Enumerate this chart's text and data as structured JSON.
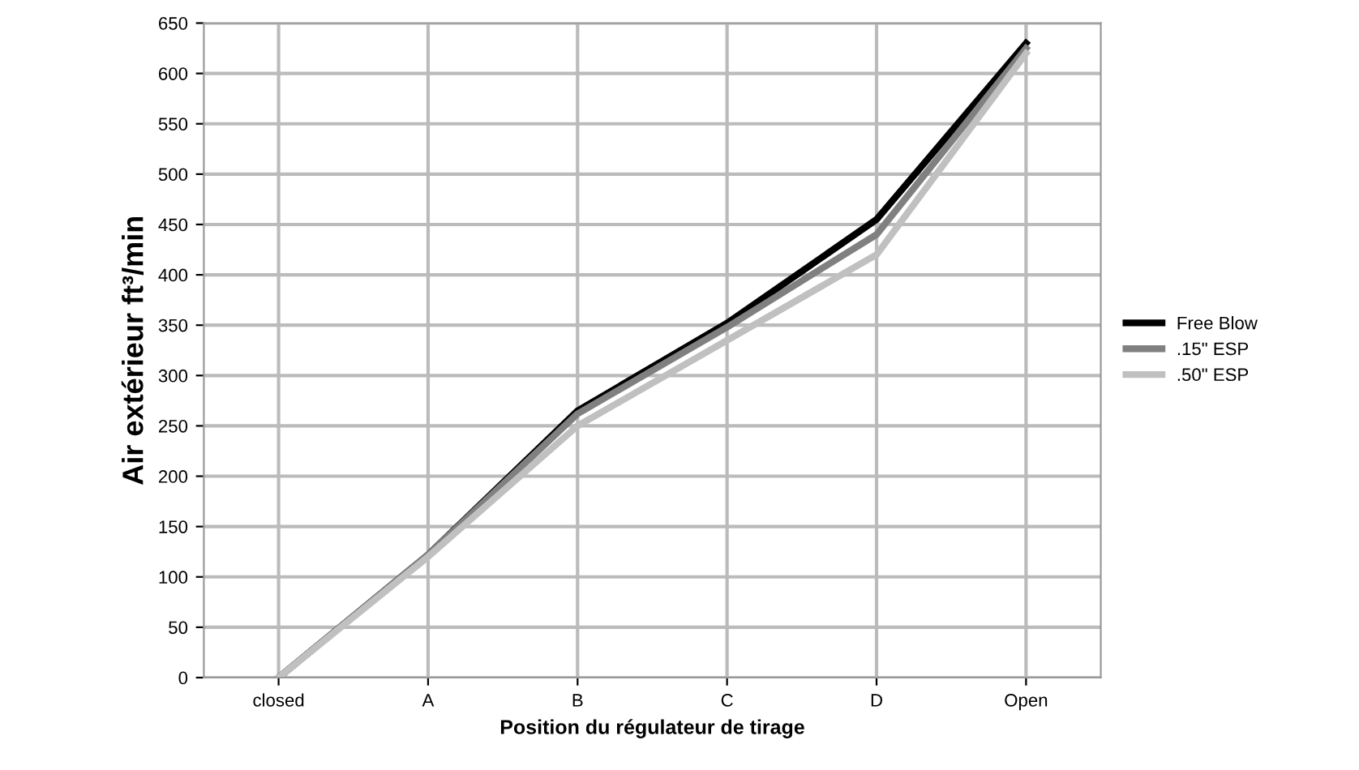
{
  "chart_data": {
    "type": "line",
    "xlabel": "Position du régulateur de tirage",
    "ylabel": "Air extérieur ft³/min",
    "categories": [
      "closed",
      "A",
      "B",
      "C",
      "D",
      "Open"
    ],
    "series": [
      {
        "name": "Free Blow",
        "color": "#000000",
        "values": [
          0,
          122,
          265,
          352,
          455,
          630
        ]
      },
      {
        "name": ".15\" ESP",
        "color": "#808080",
        "values": [
          0,
          122,
          262,
          348,
          440,
          625
        ]
      },
      {
        "name": ".50\" ESP",
        "color": "#c0c0c0",
        "values": [
          0,
          120,
          250,
          335,
          420,
          620
        ]
      }
    ],
    "ylim": [
      0,
      650
    ],
    "yticks": [
      0,
      50,
      100,
      150,
      200,
      250,
      300,
      350,
      400,
      450,
      500,
      550,
      600,
      650
    ],
    "grid": true,
    "legend": "right",
    "marker": "none",
    "line_style": "solid"
  }
}
